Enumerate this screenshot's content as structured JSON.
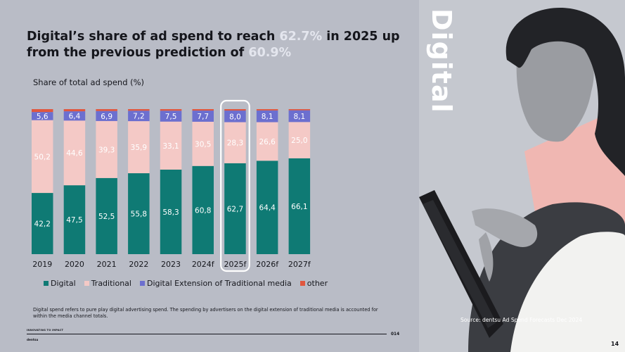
{
  "headline": {
    "part1": "Digital’s share of ad spend to reach ",
    "hl1": "62.7%",
    "part2": " in 2025 up from the previous prediction of ",
    "hl2": "60.9%"
  },
  "side_title": "Digital",
  "source": "Source: dentsu Ad Spend Forecasts Dec 2024",
  "footnote": "Digital spend refers to pure play digital advertising spend.  The spending by advertisers on the digital extension of traditional media is accounted for within the media channel totals.",
  "footer": {
    "tagline": "INNOVATING TO IMPACT",
    "logo": "dentsu",
    "code": "014",
    "page": "14"
  },
  "colors": {
    "digital": "#0f7a74",
    "traditional": "#f4c9c6",
    "extension": "#6c6fcf",
    "other": "#e0573f",
    "highlight": "#e4e6ee",
    "background": "#b9bcc6"
  },
  "chart_data": {
    "type": "bar",
    "stacked": true,
    "title": "Share of total ad spend (%)",
    "xlabel": "",
    "ylabel": "Share of total ad spend (%)",
    "ylim": [
      0,
      100
    ],
    "highlight_category": "2025f",
    "categories": [
      "2019",
      "2020",
      "2021",
      "2022",
      "2023",
      "2024f",
      "2025f",
      "2026f",
      "2027f"
    ],
    "series": [
      {
        "name": "Digital",
        "color": "#0f7a74",
        "values": [
          42.2,
          47.5,
          52.5,
          55.8,
          58.3,
          60.8,
          62.7,
          64.4,
          66.1
        ],
        "labels": [
          "42,2",
          "47,5",
          "52,5",
          "55,8",
          "58,3",
          "60,8",
          "62,7",
          "64,4",
          "66,1"
        ]
      },
      {
        "name": "Traditional",
        "color": "#f4c9c6",
        "values": [
          50.2,
          44.6,
          39.3,
          35.9,
          33.1,
          30.5,
          28.3,
          26.6,
          25.0
        ],
        "labels": [
          "50,2",
          "44,6",
          "39,3",
          "35,9",
          "33,1",
          "30,5",
          "28,3",
          "26,6",
          "25,0"
        ]
      },
      {
        "name": "Digital Extension of Traditional media",
        "color": "#6c6fcf",
        "values": [
          5.6,
          6.4,
          6.9,
          7.2,
          7.5,
          7.7,
          8.0,
          8.1,
          8.1
        ],
        "labels": [
          "5,6",
          "6,4",
          "6,9",
          "7,2",
          "7,5",
          "7,7",
          "8,0",
          "8,1",
          "8,1"
        ]
      },
      {
        "name": "other",
        "color": "#e0573f",
        "values": [
          2.0,
          1.5,
          1.3,
          1.1,
          1.1,
          1.0,
          1.0,
          0.9,
          0.8
        ],
        "labels": []
      }
    ],
    "legend": [
      "Digital",
      "Traditional",
      "Digital Extension of Traditional media",
      "other"
    ],
    "legend_position": "bottom"
  }
}
